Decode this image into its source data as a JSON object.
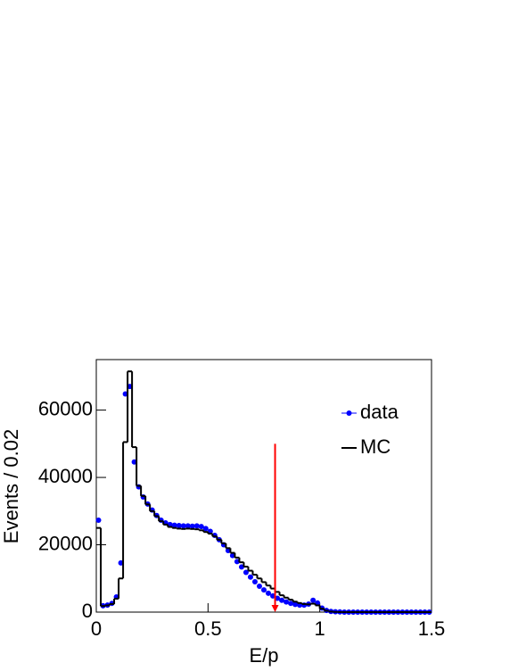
{
  "chart_data": {
    "type": "histogram",
    "xlabel": "E/p",
    "ylabel": "Events / 0.02",
    "bins": [
      0,
      0.02,
      0.04,
      0.06,
      0.08,
      0.1,
      0.12,
      0.14,
      0.16,
      0.18,
      0.2,
      0.22,
      0.24,
      0.26,
      0.28,
      0.3,
      0.32,
      0.34,
      0.36,
      0.38,
      0.4,
      0.42,
      0.44,
      0.46,
      0.48,
      0.5,
      0.52,
      0.54,
      0.56,
      0.58,
      0.6,
      0.62,
      0.64,
      0.66,
      0.68,
      0.7,
      0.72,
      0.74,
      0.76,
      0.78,
      0.8,
      0.82,
      0.84,
      0.86,
      0.88,
      0.9,
      0.92,
      0.94,
      0.96,
      0.98,
      1,
      1.02,
      1.04,
      1.06,
      1.08,
      1.1,
      1.12,
      1.14,
      1.16,
      1.18,
      1.2,
      1.22,
      1.24,
      1.26,
      1.28,
      1.3,
      1.32,
      1.34,
      1.36,
      1.38,
      1.4,
      1.42,
      1.44,
      1.46,
      1.48,
      1.5
    ],
    "series": [
      {
        "name": "data",
        "color": "#0000ff",
        "style": "points",
        "values": [
          27300,
          1900,
          2100,
          2600,
          4500,
          14600,
          64800,
          67000,
          44600,
          37200,
          34200,
          32100,
          30300,
          28700,
          27300,
          26500,
          26000,
          25800,
          25700,
          25600,
          25600,
          25500,
          25600,
          25400,
          24800,
          24000,
          22800,
          21500,
          20000,
          18300,
          16800,
          15000,
          13400,
          11800,
          10400,
          9000,
          7700,
          6600,
          5600,
          4800,
          4100,
          3500,
          3000,
          2600,
          2300,
          2100,
          2100,
          2400,
          3500,
          2700,
          1200,
          500,
          200,
          100,
          50,
          0,
          0,
          0,
          0,
          0,
          0,
          0,
          0,
          0,
          0,
          0,
          0,
          0,
          0,
          0,
          0,
          0,
          0,
          0,
          0
        ]
      },
      {
        "name": "MC",
        "color": "#000000",
        "style": "step",
        "values": [
          25000,
          1800,
          2000,
          2400,
          4000,
          10000,
          50500,
          71500,
          49000,
          37500,
          34500,
          32000,
          30000,
          28500,
          27000,
          26000,
          25300,
          25000,
          24800,
          24700,
          24800,
          24700,
          24600,
          24300,
          23800,
          23300,
          22500,
          21500,
          20400,
          19000,
          17600,
          16200,
          14800,
          13500,
          12300,
          11100,
          10000,
          8900,
          7900,
          7000,
          6000,
          5000,
          4300,
          3700,
          3100,
          2700,
          2400,
          2300,
          2500,
          2000,
          1000,
          400,
          150,
          50,
          20,
          0,
          0,
          0,
          0,
          0,
          0,
          0,
          0,
          0,
          0,
          0,
          0,
          0,
          0,
          0,
          0,
          0,
          0,
          0,
          0
        ]
      }
    ],
    "arrow": {
      "x": 0.8,
      "from": 50000,
      "to": 0,
      "color": "#ff0000"
    },
    "xlim": [
      0,
      1.5
    ],
    "xticks": [
      0,
      0.5,
      1,
      1.5
    ],
    "ylim": [
      0,
      75000
    ],
    "yticks": [
      0,
      20000,
      40000,
      60000
    ],
    "legend": "upper right"
  }
}
